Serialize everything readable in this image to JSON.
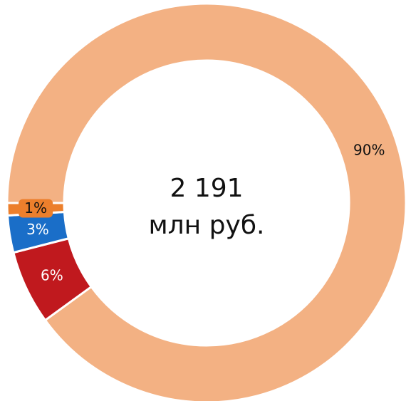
{
  "chart_data": {
    "type": "donut",
    "center_text": [
      "2 191",
      "млн руб."
    ],
    "values": [
      90,
      6,
      3,
      1
    ],
    "value_labels": [
      "90%",
      "6%",
      "3%",
      "1%"
    ],
    "colors": [
      "#f3b183",
      "#c0191e",
      "#1a6ec8",
      "#ec7f2c"
    ],
    "start_angle": 270,
    "direction": "clockwise"
  }
}
